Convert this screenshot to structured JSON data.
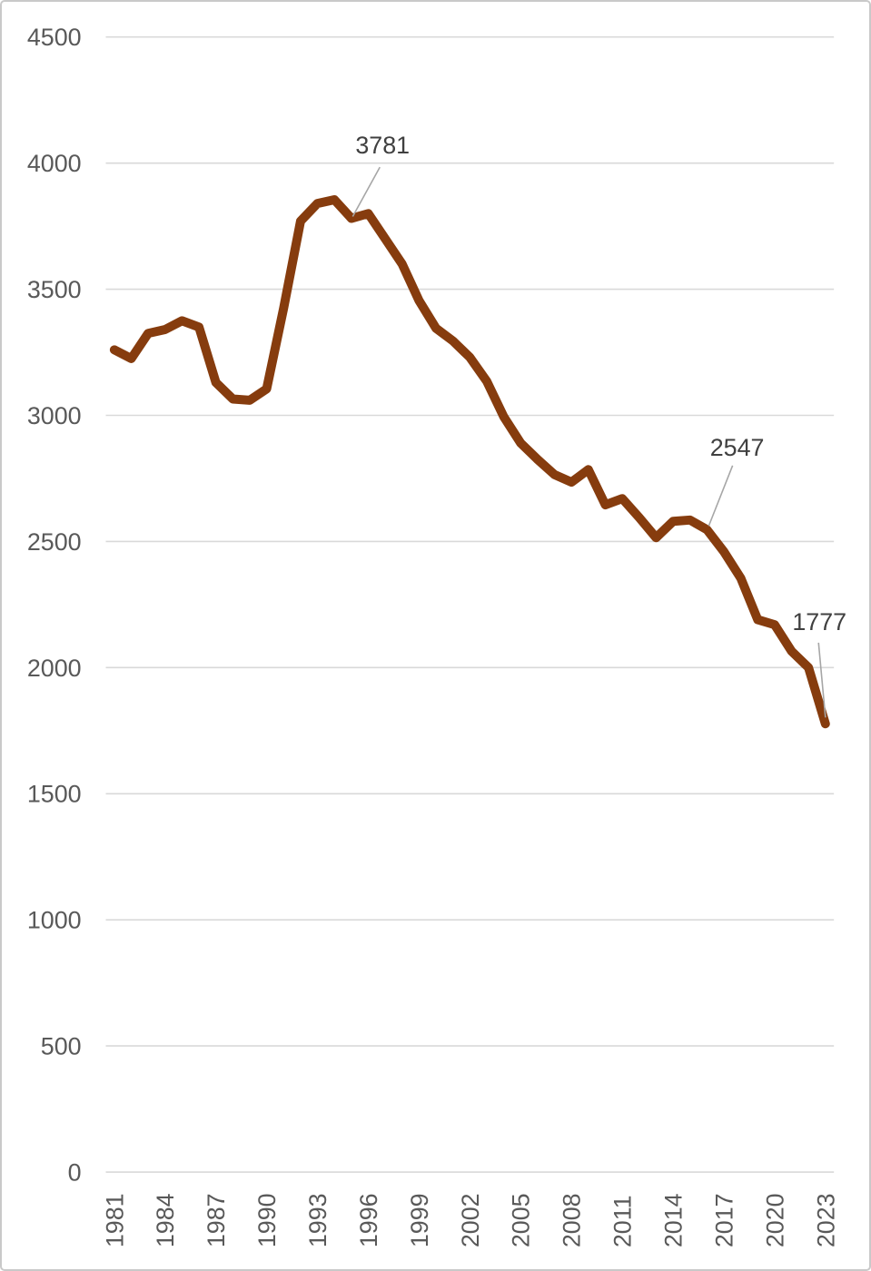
{
  "chart_data": {
    "type": "line",
    "title": "",
    "xlabel": "",
    "ylabel": "",
    "x": [
      1981,
      1982,
      1983,
      1984,
      1985,
      1986,
      1987,
      1988,
      1989,
      1990,
      1991,
      1992,
      1993,
      1994,
      1995,
      1996,
      1997,
      1998,
      1999,
      2000,
      2001,
      2002,
      2003,
      2004,
      2005,
      2006,
      2007,
      2008,
      2009,
      2010,
      2011,
      2012,
      2013,
      2014,
      2015,
      2016,
      2017,
      2018,
      2019,
      2020,
      2021,
      2022,
      2023
    ],
    "series": [
      {
        "name": "series-1",
        "values": [
          3260,
          3225,
          3325,
          3340,
          3375,
          3350,
          3130,
          3065,
          3060,
          3105,
          3425,
          3770,
          3840,
          3855,
          3781,
          3800,
          3700,
          3600,
          3455,
          3345,
          3295,
          3230,
          3135,
          2995,
          2890,
          2825,
          2765,
          2735,
          2785,
          2645,
          2670,
          2595,
          2515,
          2580,
          2585,
          2547,
          2460,
          2355,
          2190,
          2170,
          2065,
          2000,
          1777
        ]
      }
    ],
    "annotations": [
      {
        "x": 1995,
        "label": "3781"
      },
      {
        "x": 2016,
        "label": "2547"
      },
      {
        "x": 2023,
        "label": "1777"
      }
    ],
    "ylim": [
      0,
      4500
    ],
    "yticks": [
      "0",
      "500",
      "1000",
      "1500",
      "2000",
      "2500",
      "3000",
      "3500",
      "4000",
      "4500"
    ],
    "ytick_values": [
      0,
      500,
      1000,
      1500,
      2000,
      2500,
      3000,
      3500,
      4000,
      4500
    ],
    "xtick_labels": [
      "1981",
      "1984",
      "1987",
      "1990",
      "1993",
      "1996",
      "1999",
      "2002",
      "2005",
      "2008",
      "2011",
      "2014",
      "2017",
      "2020",
      "2023"
    ],
    "grid": "horizontal",
    "legend": "none",
    "colors": {
      "line": "#863C0E",
      "gridline": "#D9D9D9",
      "tick_label": "#595959",
      "data_label": "#404040",
      "leader_line": "#A6A6A6",
      "background": "#FFFFFF",
      "border": "#C9C9C9"
    }
  }
}
